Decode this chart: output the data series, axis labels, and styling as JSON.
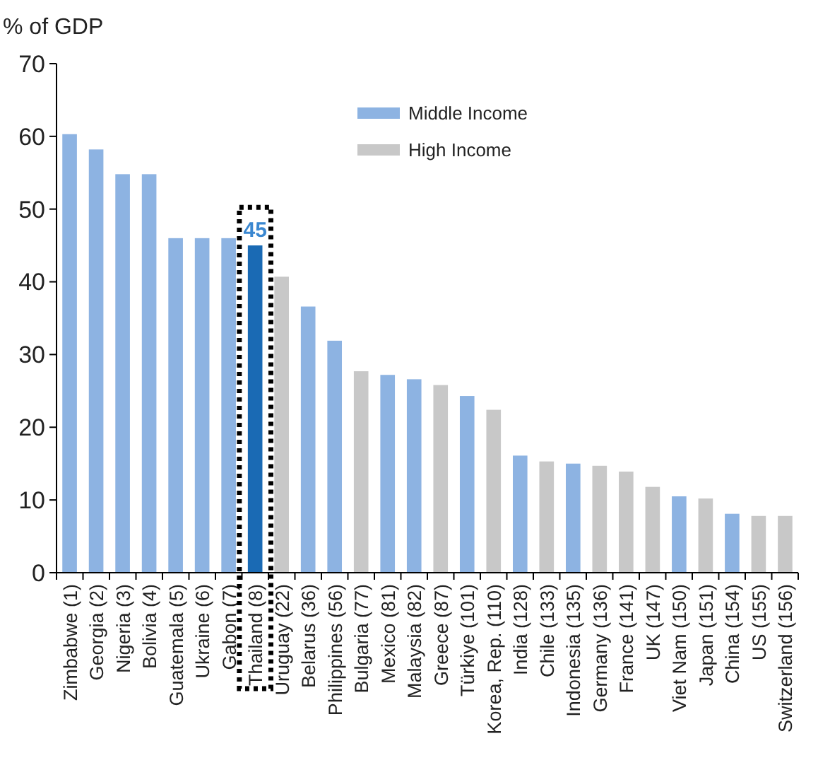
{
  "chart_data": {
    "type": "bar",
    "ylabel": "% of GDP",
    "legend": "top",
    "grid": false,
    "categories": [
      "Zimbabwe (1)",
      "Georgia (2)",
      "Nigeria (3)",
      "Bolivia (4)",
      "Guatemala (5)",
      "Ukraine (6)",
      "Gabon (7)",
      "Thailand (8)",
      "Uruguay (22)",
      "Belarus (36)",
      "Philippines (56)",
      "Bulgaria (77)",
      "Mexico (81)",
      "Malaysia (82)",
      "Greece (87)",
      "Türkiye (101)",
      "Korea, Rep. (110)",
      "India (128)",
      "Chile (133)",
      "Indonesia (135)",
      "Germany (136)",
      "France (141)",
      "UK (147)",
      "Viet Nam (150)",
      "Japan (151)",
      "China (154)",
      "US (155)",
      "Switzerland (156)"
    ],
    "ylim": [
      0,
      70
    ],
    "yticks": [
      0,
      10,
      20,
      30,
      40,
      50,
      60,
      70
    ],
    "series": [
      {
        "name": "Middle Income",
        "color": "#8db3e2",
        "values": [
          60.3,
          58.2,
          54.8,
          54.8,
          46,
          46,
          46,
          null,
          null,
          36.6,
          31.9,
          null,
          27.2,
          26.6,
          null,
          24.3,
          null,
          16.1,
          null,
          15.0,
          null,
          null,
          null,
          10.5,
          null,
          8.1,
          null,
          null
        ]
      },
      {
        "name": "High Income",
        "color": "#c8c8c8",
        "values": [
          null,
          null,
          null,
          null,
          null,
          null,
          null,
          null,
          40.7,
          null,
          null,
          27.7,
          null,
          null,
          25.8,
          null,
          22.4,
          null,
          15.3,
          null,
          14.7,
          13.9,
          11.8,
          null,
          10.2,
          null,
          7.8,
          7.8
        ]
      },
      {
        "color": "#1a6ab4",
        "values": [
          null,
          null,
          null,
          null,
          null,
          null,
          null,
          45,
          null,
          null,
          null,
          null,
          null,
          null,
          null,
          null,
          null,
          null,
          null,
          null,
          null,
          null,
          null,
          null,
          null,
          null,
          null,
          null
        ],
        "value_labels": [
          null,
          null,
          null,
          null,
          null,
          null,
          null,
          "45",
          null,
          null,
          null,
          null,
          null,
          null,
          null,
          null,
          null,
          null,
          null,
          null,
          null,
          null,
          null,
          null,
          null,
          null,
          null,
          null
        ]
      }
    ]
  }
}
